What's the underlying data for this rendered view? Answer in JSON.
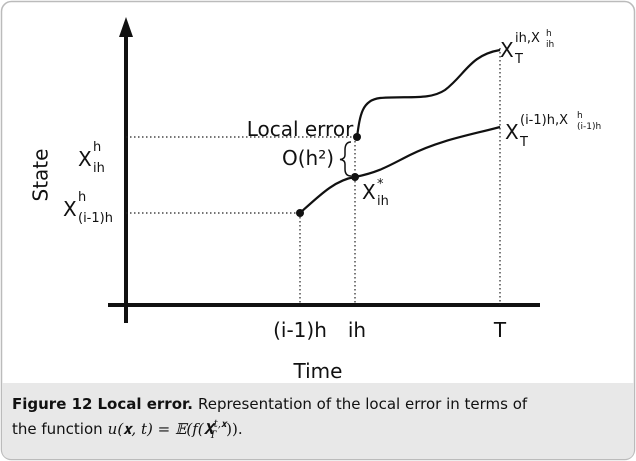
{
  "axes": {
    "y_label": "State",
    "x_label": "Time"
  },
  "x_ticks": [
    "(i-1)h",
    "ih",
    "T"
  ],
  "y_labels": [
    {
      "base": "X",
      "sup": "h",
      "sub": "ih"
    },
    {
      "base": "X",
      "sup": "h",
      "sub": "(i-1)h"
    }
  ],
  "annotations": {
    "local_error": "Local error",
    "order": "O(h²)",
    "exact_point": {
      "base": "X",
      "sup": "*",
      "sub": "ih"
    },
    "upper_end": {
      "base": "X",
      "sub": "T",
      "sup": "ih,X",
      "inner_sup": "h",
      "inner_sub": "ih"
    },
    "lower_end": {
      "base": "X",
      "sub": "T",
      "sup": "(i-1)h,X",
      "inner_sup": "h",
      "inner_sub": "(i-1)h"
    }
  },
  "caption": {
    "label": "Figure 12",
    "title": "Local error.",
    "line1": "Representation of the local error in terms of",
    "line2": "the function",
    "math_base": "u(𝐱, t) = 𝔼(f(𝐗",
    "math_sup": "t,𝐱",
    "math_sub": "T",
    "math_close": "))."
  }
}
